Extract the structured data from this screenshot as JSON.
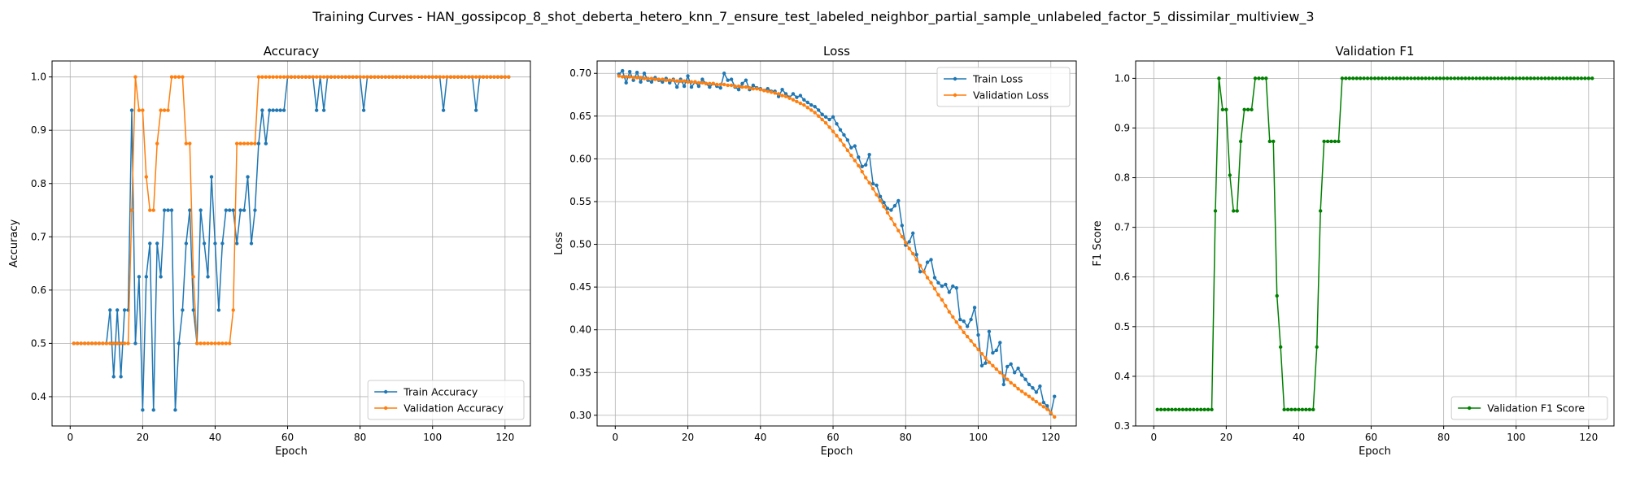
{
  "figure": {
    "suptitle": "Training Curves - HAN_gossipcop_8_shot_deberta_hetero_knn_7_ensure_test_labeled_neighbor_partial_sample_unlabeled_factor_5_dissimilar_multiview_3"
  },
  "colors": {
    "train": "#1f77b4",
    "validation": "#ff7f0e",
    "f1": "#008000",
    "grid": "#b0b0b0"
  },
  "chart_data": [
    {
      "type": "line",
      "title": "Accuracy",
      "xlabel": "Epoch",
      "ylabel": "Accuracy",
      "xlim": [
        -5,
        127
      ],
      "ylim": [
        0.345,
        1.03
      ],
      "xticks": [
        0,
        20,
        40,
        60,
        80,
        100,
        120
      ],
      "yticks": [
        0.4,
        0.5,
        0.6,
        0.7,
        0.8,
        0.9,
        1.0
      ],
      "ytick_labels": [
        "0.4",
        "0.5",
        "0.6",
        "0.7",
        "0.8",
        "0.9",
        "1.0"
      ],
      "grid": true,
      "legend_position": "lower right",
      "x": [
        1,
        2,
        3,
        4,
        5,
        6,
        7,
        8,
        9,
        10,
        11,
        12,
        13,
        14,
        15,
        16,
        17,
        18,
        19,
        20,
        21,
        22,
        23,
        24,
        25,
        26,
        27,
        28,
        29,
        30,
        31,
        32,
        33,
        34,
        35,
        36,
        37,
        38,
        39,
        40,
        41,
        42,
        43,
        44,
        45,
        46,
        47,
        48,
        49,
        50,
        51,
        52,
        53,
        54,
        55,
        56,
        57,
        58,
        59,
        60,
        61,
        62,
        63,
        64,
        65,
        66,
        67,
        68,
        69,
        70,
        71,
        72,
        73,
        74,
        75,
        76,
        77,
        78,
        79,
        80,
        81,
        82,
        83,
        84,
        85,
        86,
        87,
        88,
        89,
        90,
        91,
        92,
        93,
        94,
        95,
        96,
        97,
        98,
        99,
        100,
        101,
        102,
        103,
        104,
        105,
        106,
        107,
        108,
        109,
        110,
        111,
        112,
        113,
        114,
        115,
        116,
        117,
        118,
        119,
        120,
        121
      ],
      "series": [
        {
          "name": "Train Accuracy",
          "color": "#1f77b4",
          "values": [
            0.5,
            0.5,
            0.5,
            0.5,
            0.5,
            0.5,
            0.5,
            0.5,
            0.5,
            0.5,
            0.5625,
            0.4375,
            0.5625,
            0.4375,
            0.5625,
            0.5625,
            0.9375,
            0.5,
            0.625,
            0.375,
            0.625,
            0.6875,
            0.375,
            0.6875,
            0.625,
            0.75,
            0.75,
            0.75,
            0.375,
            0.5,
            0.5625,
            0.6875,
            0.75,
            0.5625,
            0.5,
            0.75,
            0.6875,
            0.625,
            0.8125,
            0.6875,
            0.5625,
            0.6875,
            0.75,
            0.75,
            0.75,
            0.6875,
            0.75,
            0.75,
            0.8125,
            0.6875,
            0.75,
            0.875,
            0.9375,
            0.875,
            0.9375,
            0.9375,
            0.9375,
            0.9375,
            0.9375,
            1.0,
            1.0,
            1.0,
            1.0,
            1.0,
            1.0,
            1.0,
            1.0,
            0.9375,
            1.0,
            0.9375,
            1.0,
            1.0,
            1.0,
            1.0,
            1.0,
            1.0,
            1.0,
            1.0,
            1.0,
            1.0,
            0.9375,
            1.0,
            1.0,
            1.0,
            1.0,
            1.0,
            1.0,
            1.0,
            1.0,
            1.0,
            1.0,
            1.0,
            1.0,
            1.0,
            1.0,
            1.0,
            1.0,
            1.0,
            1.0,
            1.0,
            1.0,
            1.0,
            0.9375,
            1.0,
            1.0,
            1.0,
            1.0,
            1.0,
            1.0,
            1.0,
            1.0,
            0.9375,
            1.0,
            1.0,
            1.0,
            1.0,
            1.0,
            1.0,
            1.0,
            1.0,
            1.0
          ]
        },
        {
          "name": "Validation Accuracy",
          "color": "#ff7f0e",
          "values": [
            0.5,
            0.5,
            0.5,
            0.5,
            0.5,
            0.5,
            0.5,
            0.5,
            0.5,
            0.5,
            0.5,
            0.5,
            0.5,
            0.5,
            0.5,
            0.5,
            0.75,
            1.0,
            0.9375,
            0.9375,
            0.8125,
            0.75,
            0.75,
            0.875,
            0.9375,
            0.9375,
            0.9375,
            1.0,
            1.0,
            1.0,
            1.0,
            0.875,
            0.875,
            0.625,
            0.5,
            0.5,
            0.5,
            0.5,
            0.5,
            0.5,
            0.5,
            0.5,
            0.5,
            0.5,
            0.5625,
            0.875,
            0.875,
            0.875,
            0.875,
            0.875,
            0.875,
            1.0,
            1.0,
            1.0,
            1.0,
            1.0,
            1.0,
            1.0,
            1.0,
            1.0,
            1.0,
            1.0,
            1.0,
            1.0,
            1.0,
            1.0,
            1.0,
            1.0,
            1.0,
            1.0,
            1.0,
            1.0,
            1.0,
            1.0,
            1.0,
            1.0,
            1.0,
            1.0,
            1.0,
            1.0,
            1.0,
            1.0,
            1.0,
            1.0,
            1.0,
            1.0,
            1.0,
            1.0,
            1.0,
            1.0,
            1.0,
            1.0,
            1.0,
            1.0,
            1.0,
            1.0,
            1.0,
            1.0,
            1.0,
            1.0,
            1.0,
            1.0,
            1.0,
            1.0,
            1.0,
            1.0,
            1.0,
            1.0,
            1.0,
            1.0,
            1.0,
            1.0,
            1.0,
            1.0,
            1.0,
            1.0,
            1.0,
            1.0,
            1.0,
            1.0,
            1.0
          ]
        }
      ]
    },
    {
      "type": "line",
      "title": "Loss",
      "xlabel": "Epoch",
      "ylabel": "Loss",
      "xlim": [
        -5,
        127
      ],
      "ylim": [
        0.2875,
        0.7145
      ],
      "xticks": [
        0,
        20,
        40,
        60,
        80,
        100,
        120
      ],
      "yticks": [
        0.3,
        0.35,
        0.4,
        0.45,
        0.5,
        0.55,
        0.6,
        0.65,
        0.7
      ],
      "ytick_labels": [
        "0.30",
        "0.35",
        "0.40",
        "0.45",
        "0.50",
        "0.55",
        "0.60",
        "0.65",
        "0.70"
      ],
      "grid": true,
      "legend_position": "upper right",
      "x": [
        1,
        2,
        3,
        4,
        5,
        6,
        7,
        8,
        9,
        10,
        11,
        12,
        13,
        14,
        15,
        16,
        17,
        18,
        19,
        20,
        21,
        22,
        23,
        24,
        25,
        26,
        27,
        28,
        29,
        30,
        31,
        32,
        33,
        34,
        35,
        36,
        37,
        38,
        39,
        40,
        41,
        42,
        43,
        44,
        45,
        46,
        47,
        48,
        49,
        50,
        51,
        52,
        53,
        54,
        55,
        56,
        57,
        58,
        59,
        60,
        61,
        62,
        63,
        64,
        65,
        66,
        67,
        68,
        69,
        70,
        71,
        72,
        73,
        74,
        75,
        76,
        77,
        78,
        79,
        80,
        81,
        82,
        83,
        84,
        85,
        86,
        87,
        88,
        89,
        90,
        91,
        92,
        93,
        94,
        95,
        96,
        97,
        98,
        99,
        100,
        101,
        102,
        103,
        104,
        105,
        106,
        107,
        108,
        109,
        110,
        111,
        112,
        113,
        114,
        115,
        116,
        117,
        118,
        119,
        120,
        121
      ],
      "series": [
        {
          "name": "Train Loss",
          "color": "#1f77b4",
          "values": [
            0.699,
            0.703,
            0.689,
            0.702,
            0.692,
            0.701,
            0.69,
            0.7,
            0.692,
            0.69,
            0.695,
            0.692,
            0.69,
            0.694,
            0.689,
            0.693,
            0.684,
            0.693,
            0.685,
            0.697,
            0.684,
            0.69,
            0.685,
            0.693,
            0.688,
            0.684,
            0.688,
            0.685,
            0.683,
            0.7,
            0.692,
            0.693,
            0.684,
            0.681,
            0.688,
            0.692,
            0.681,
            0.686,
            0.683,
            0.682,
            0.68,
            0.682,
            0.679,
            0.679,
            0.673,
            0.681,
            0.676,
            0.672,
            0.676,
            0.672,
            0.674,
            0.669,
            0.666,
            0.663,
            0.661,
            0.657,
            0.652,
            0.649,
            0.646,
            0.649,
            0.641,
            0.634,
            0.628,
            0.622,
            0.613,
            0.615,
            0.602,
            0.591,
            0.593,
            0.605,
            0.571,
            0.569,
            0.556,
            0.549,
            0.542,
            0.54,
            0.545,
            0.551,
            0.522,
            0.499,
            0.503,
            0.513,
            0.488,
            0.468,
            0.468,
            0.479,
            0.482,
            0.461,
            0.455,
            0.451,
            0.453,
            0.444,
            0.451,
            0.449,
            0.412,
            0.41,
            0.404,
            0.412,
            0.426,
            0.394,
            0.358,
            0.361,
            0.398,
            0.373,
            0.376,
            0.385,
            0.336,
            0.357,
            0.36,
            0.35,
            0.355,
            0.347,
            0.342,
            0.336,
            0.332,
            0.327,
            0.334,
            0.315,
            0.311,
            0.302,
            0.322
          ]
        },
        {
          "name": "Validation Loss",
          "color": "#ff7f0e",
          "values": [
            0.697,
            0.696,
            0.696,
            0.696,
            0.695,
            0.695,
            0.695,
            0.694,
            0.694,
            0.694,
            0.693,
            0.693,
            0.693,
            0.692,
            0.692,
            0.692,
            0.691,
            0.691,
            0.691,
            0.69,
            0.69,
            0.69,
            0.689,
            0.689,
            0.688,
            0.688,
            0.688,
            0.687,
            0.687,
            0.687,
            0.686,
            0.686,
            0.685,
            0.685,
            0.684,
            0.684,
            0.683,
            0.682,
            0.682,
            0.681,
            0.68,
            0.679,
            0.678,
            0.677,
            0.676,
            0.674,
            0.673,
            0.671,
            0.669,
            0.667,
            0.665,
            0.663,
            0.66,
            0.657,
            0.654,
            0.65,
            0.646,
            0.642,
            0.637,
            0.632,
            0.627,
            0.622,
            0.616,
            0.61,
            0.604,
            0.598,
            0.592,
            0.585,
            0.578,
            0.572,
            0.565,
            0.558,
            0.551,
            0.544,
            0.537,
            0.53,
            0.523,
            0.516,
            0.509,
            0.502,
            0.495,
            0.489,
            0.482,
            0.475,
            0.468,
            0.461,
            0.455,
            0.448,
            0.441,
            0.435,
            0.428,
            0.421,
            0.415,
            0.409,
            0.403,
            0.397,
            0.392,
            0.387,
            0.382,
            0.377,
            0.372,
            0.367,
            0.362,
            0.358,
            0.354,
            0.35,
            0.346,
            0.342,
            0.338,
            0.335,
            0.331,
            0.328,
            0.325,
            0.322,
            0.319,
            0.316,
            0.313,
            0.31,
            0.307,
            0.303,
            0.298
          ]
        }
      ]
    },
    {
      "type": "line",
      "title": "Validation F1",
      "xlabel": "Epoch",
      "ylabel": "F1 Score",
      "xlim": [
        -5,
        127
      ],
      "ylim": [
        0.3,
        1.035
      ],
      "xticks": [
        0,
        20,
        40,
        60,
        80,
        100,
        120
      ],
      "yticks": [
        0.3,
        0.4,
        0.5,
        0.6,
        0.7,
        0.8,
        0.9,
        1.0
      ],
      "ytick_labels": [
        "0.3",
        "0.4",
        "0.5",
        "0.6",
        "0.7",
        "0.8",
        "0.9",
        "1.0"
      ],
      "grid": true,
      "legend_position": "lower right",
      "x": [
        1,
        2,
        3,
        4,
        5,
        6,
        7,
        8,
        9,
        10,
        11,
        12,
        13,
        14,
        15,
        16,
        17,
        18,
        19,
        20,
        21,
        22,
        23,
        24,
        25,
        26,
        27,
        28,
        29,
        30,
        31,
        32,
        33,
        34,
        35,
        36,
        37,
        38,
        39,
        40,
        41,
        42,
        43,
        44,
        45,
        46,
        47,
        48,
        49,
        50,
        51,
        52,
        53,
        54,
        55,
        56,
        57,
        58,
        59,
        60,
        61,
        62,
        63,
        64,
        65,
        66,
        67,
        68,
        69,
        70,
        71,
        72,
        73,
        74,
        75,
        76,
        77,
        78,
        79,
        80,
        81,
        82,
        83,
        84,
        85,
        86,
        87,
        88,
        89,
        90,
        91,
        92,
        93,
        94,
        95,
        96,
        97,
        98,
        99,
        100,
        101,
        102,
        103,
        104,
        105,
        106,
        107,
        108,
        109,
        110,
        111,
        112,
        113,
        114,
        115,
        116,
        117,
        118,
        119,
        120,
        121
      ],
      "series": [
        {
          "name": "Validation F1 Score",
          "color": "#008000",
          "values": [
            0.333,
            0.333,
            0.333,
            0.333,
            0.333,
            0.333,
            0.333,
            0.333,
            0.333,
            0.333,
            0.333,
            0.333,
            0.333,
            0.333,
            0.333,
            0.333,
            0.733,
            1.0,
            0.937,
            0.937,
            0.805,
            0.733,
            0.733,
            0.873,
            0.937,
            0.937,
            0.937,
            1.0,
            1.0,
            1.0,
            1.0,
            0.873,
            0.873,
            0.562,
            0.459,
            0.333,
            0.333,
            0.333,
            0.333,
            0.333,
            0.333,
            0.333,
            0.333,
            0.333,
            0.459,
            0.733,
            0.873,
            0.873,
            0.873,
            0.873,
            0.873,
            1.0,
            1.0,
            1.0,
            1.0,
            1.0,
            1.0,
            1.0,
            1.0,
            1.0,
            1.0,
            1.0,
            1.0,
            1.0,
            1.0,
            1.0,
            1.0,
            1.0,
            1.0,
            1.0,
            1.0,
            1.0,
            1.0,
            1.0,
            1.0,
            1.0,
            1.0,
            1.0,
            1.0,
            1.0,
            1.0,
            1.0,
            1.0,
            1.0,
            1.0,
            1.0,
            1.0,
            1.0,
            1.0,
            1.0,
            1.0,
            1.0,
            1.0,
            1.0,
            1.0,
            1.0,
            1.0,
            1.0,
            1.0,
            1.0,
            1.0,
            1.0,
            1.0,
            1.0,
            1.0,
            1.0,
            1.0,
            1.0,
            1.0,
            1.0,
            1.0,
            1.0,
            1.0,
            1.0,
            1.0,
            1.0,
            1.0,
            1.0,
            1.0,
            1.0,
            1.0
          ]
        }
      ]
    }
  ]
}
